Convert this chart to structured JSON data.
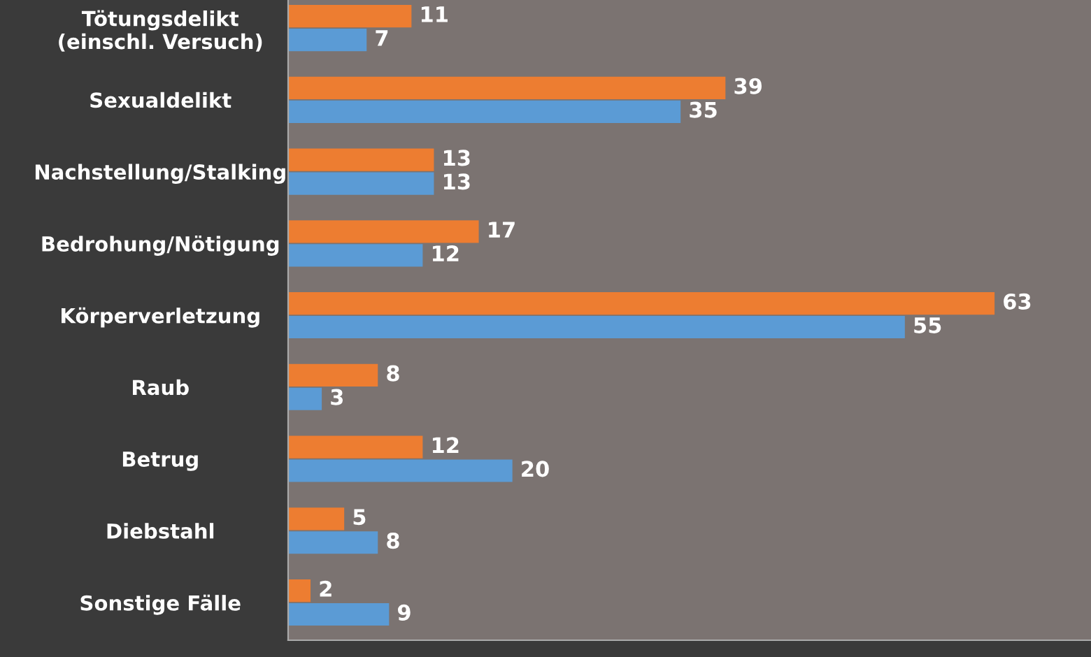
{
  "chart_data": {
    "type": "bar",
    "orientation": "horizontal",
    "categories": [
      "Tötungsdelikt\n(einschl. Versuch)",
      "Sexualdelikt",
      "Nachstellung/Stalking",
      "Bedrohung/Nötigung",
      "Körperverletzung",
      "Raub",
      "Betrug",
      "Diebstahl",
      "Sonstige Fälle"
    ],
    "series": [
      {
        "color": "#ed7d31",
        "values": [
          11,
          39,
          13,
          17,
          63,
          8,
          12,
          5,
          2
        ]
      },
      {
        "color": "#5b9bd5",
        "values": [
          7,
          35,
          13,
          12,
          55,
          3,
          20,
          8,
          9
        ]
      }
    ],
    "xlim": [
      0,
      71.6
    ],
    "data_labels": true,
    "tick_labels": "y",
    "grid": false,
    "legend": false
  }
}
